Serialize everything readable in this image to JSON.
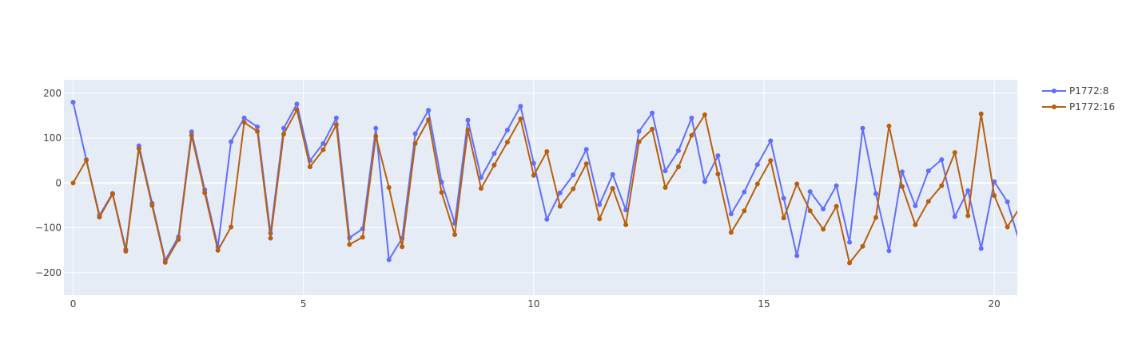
{
  "chart_data": {
    "type": "line",
    "title": "",
    "xlabel": "",
    "ylabel": "",
    "xlim": [
      -0.2,
      20.5
    ],
    "ylim": [
      -250,
      230
    ],
    "x_ticks": [
      0,
      5,
      10,
      15,
      20
    ],
    "y_ticks": [
      -200,
      -100,
      0,
      100,
      200
    ],
    "y_tick_labels": [
      "−200",
      "−100",
      "0",
      "100",
      "200"
    ],
    "grid": true,
    "legend_position": "top-right",
    "x": [
      0,
      0.2857,
      0.5714,
      0.8571,
      1.1429,
      1.4286,
      1.7143,
      2.0,
      2.2857,
      2.5714,
      2.8571,
      3.1429,
      3.4286,
      3.7143,
      4.0,
      4.2857,
      4.5714,
      4.8571,
      5.1429,
      5.4286,
      5.7143,
      6.0,
      6.2857,
      6.5714,
      6.8571,
      7.1429,
      7.4286,
      7.7143,
      8.0,
      8.2857,
      8.5714,
      8.8571,
      9.1429,
      9.4286,
      9.7143,
      10.0,
      10.2857,
      10.5714,
      10.8571,
      11.1429,
      11.4286,
      11.7143,
      12.0,
      12.2857,
      12.5714,
      12.8571,
      13.1429,
      13.4286,
      13.7143,
      14.0,
      14.2857,
      14.5714,
      14.8571,
      15.1429,
      15.4286,
      15.7143,
      16.0,
      16.2857,
      16.5714,
      16.8571,
      17.1429,
      17.4286,
      17.7143,
      18.0,
      18.2857,
      18.5714,
      18.8571,
      19.1429,
      19.4286,
      19.7143,
      20.0,
      20.2857,
      20.5714
    ],
    "series": [
      {
        "name": "P1772:8",
        "color": "#636efa",
        "values": [
          180,
          52,
          -72,
          -23,
          -148,
          83,
          -45,
          -172,
          -120,
          114,
          -15,
          -142,
          92,
          145,
          125,
          -112,
          122,
          176,
          50,
          88,
          145,
          -122,
          -102,
          122,
          -171,
          -123,
          110,
          162,
          2,
          -90,
          140,
          12,
          66,
          118,
          171,
          44,
          -81,
          -22,
          18,
          75,
          -48,
          19,
          -60,
          115,
          156,
          27,
          72,
          145,
          3,
          61,
          -69,
          -20,
          41,
          94,
          -34,
          -162,
          -19,
          -58,
          -6,
          -132,
          122,
          -24,
          -151,
          25,
          -51,
          27,
          52,
          -75,
          -17,
          -146,
          3,
          -42,
          -140
        ]
      },
      {
        "name": "P1772:16",
        "color": "#b8600e",
        "values": [
          0,
          51,
          -76,
          -25,
          -152,
          77,
          -50,
          -177,
          -126,
          106,
          -22,
          -150,
          -98,
          135,
          115,
          -123,
          109,
          163,
          36,
          74,
          130,
          -137,
          -121,
          104,
          -10,
          -142,
          88,
          141,
          -21,
          -115,
          118,
          -12,
          40,
          91,
          143,
          17,
          70,
          -52,
          -13,
          43,
          -80,
          -12,
          -93,
          92,
          120,
          -10,
          36,
          106,
          152,
          20,
          -110,
          -62,
          -2,
          50,
          -78,
          -2,
          -62,
          -103,
          -52,
          -178,
          -141,
          -77,
          127,
          -8,
          -93,
          -41,
          -6,
          68,
          -73,
          154,
          -28,
          -98,
          -52
        ]
      }
    ]
  }
}
